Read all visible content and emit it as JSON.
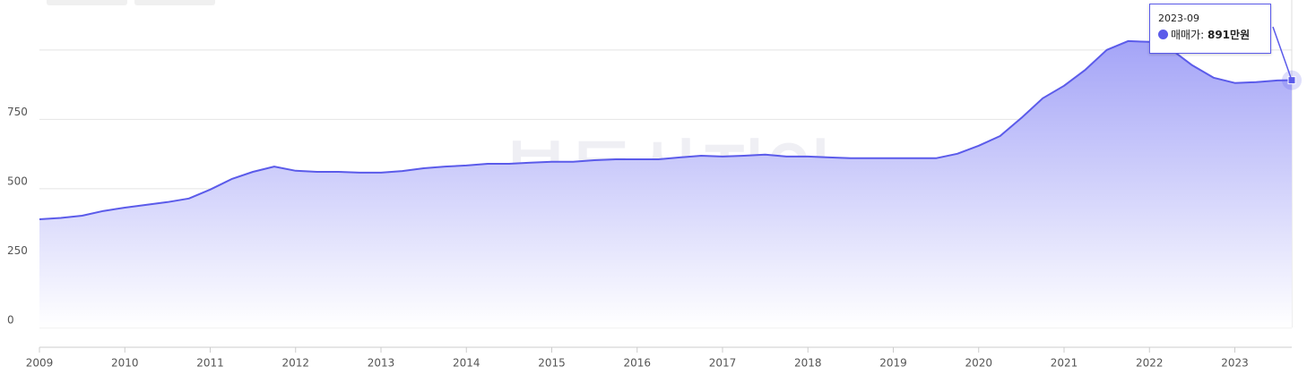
{
  "chart_data": {
    "type": "area",
    "watermark": "부동산지인",
    "x": [
      "2009-01",
      "2009-04",
      "2009-07",
      "2009-10",
      "2010-01",
      "2010-04",
      "2010-07",
      "2010-10",
      "2011-01",
      "2011-04",
      "2011-07",
      "2011-10",
      "2012-01",
      "2012-04",
      "2012-07",
      "2012-10",
      "2013-01",
      "2013-04",
      "2013-07",
      "2013-10",
      "2014-01",
      "2014-04",
      "2014-07",
      "2014-10",
      "2015-01",
      "2015-04",
      "2015-07",
      "2015-10",
      "2016-01",
      "2016-04",
      "2016-07",
      "2016-10",
      "2017-01",
      "2017-04",
      "2017-07",
      "2017-10",
      "2018-01",
      "2018-04",
      "2018-07",
      "2018-10",
      "2019-01",
      "2019-04",
      "2019-07",
      "2019-10",
      "2020-01",
      "2020-04",
      "2020-07",
      "2020-10",
      "2021-01",
      "2021-04",
      "2021-07",
      "2021-10",
      "2022-01",
      "2022-04",
      "2022-07",
      "2022-10",
      "2023-01",
      "2023-04",
      "2023-07",
      "2023-09"
    ],
    "series": [
      {
        "name": "매매가",
        "color": "#5b5bea",
        "values": [
          390,
          395,
          403,
          420,
          432,
          442,
          452,
          465,
          497,
          535,
          561,
          580,
          565,
          561,
          561,
          558,
          558,
          564,
          574,
          580,
          584,
          590,
          590,
          594,
          597,
          597,
          603,
          606,
          606,
          606,
          613,
          619,
          616,
          619,
          623,
          616,
          616,
          613,
          610,
          610,
          610,
          610,
          610,
          626,
          655,
          690,
          755,
          826,
          871,
          929,
          1000,
          1032,
          1029,
          1003,
          945,
          900,
          881,
          884,
          890,
          891
        ]
      }
    ],
    "tooltip_value_label": "891만원",
    "xlim": [
      "2009-01",
      "2023-09"
    ],
    "xticks": [
      "2009",
      "2010",
      "2011",
      "2012",
      "2013",
      "2014",
      "2015",
      "2016",
      "2017",
      "2018",
      "2019",
      "2020",
      "2021",
      "2022",
      "2023"
    ],
    "ylim": [
      0,
      1180
    ],
    "yticks": [
      0,
      250,
      500,
      750
    ],
    "ygrid": [
      0,
      250,
      500,
      750,
      1000
    ],
    "grid": true
  }
}
